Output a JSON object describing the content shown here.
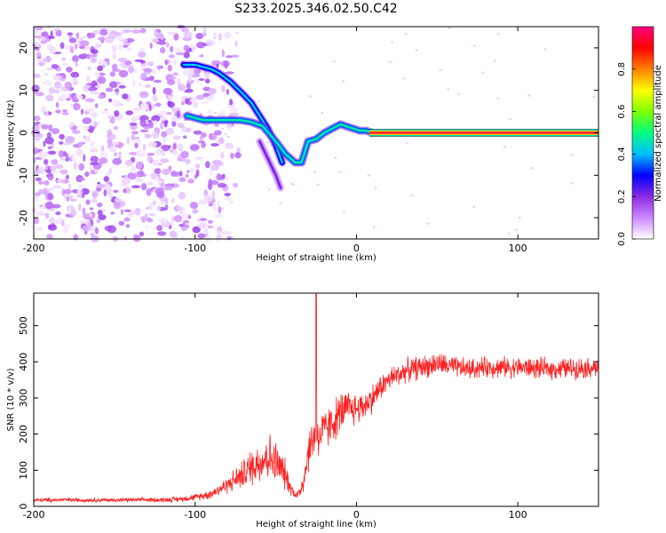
{
  "title": "S233.2025.346.02.50.C42",
  "chart_data": [
    {
      "type": "heatmap",
      "name": "spectrogram",
      "xlabel": "Height of straight line (km)",
      "ylabel": "Frequency (Hz)",
      "xlim": [
        -200,
        150
      ],
      "ylim": [
        -25,
        25
      ],
      "x_ticks": [
        -200,
        -100,
        0,
        100
      ],
      "y_ticks": [
        -20,
        -10,
        0,
        10,
        20
      ],
      "colorbar": {
        "label": "Normalized spectral amplitude",
        "range": [
          0.0,
          1.0
        ],
        "ticks": [
          0.0,
          0.2,
          0.4,
          0.6,
          0.8
        ],
        "tick_labels": [
          "0.0",
          "0.2",
          "0.4",
          "0.6",
          "0.8"
        ],
        "colors": [
          "#ffffff",
          "#cc88ff",
          "#8a2be2",
          "#0000ff",
          "#00bfff",
          "#00ff80",
          "#80ff00",
          "#ffff00",
          "#ff8000",
          "#ff0000",
          "#ff0080"
        ]
      },
      "noise_region_x": [
        -200,
        -90
      ],
      "tracks": [
        {
          "name": "upper-branch",
          "x": [
            -107,
            -100,
            -90,
            -85,
            -78,
            -70,
            -65,
            -60,
            -55,
            -50,
            -46
          ],
          "y": [
            16,
            16,
            15,
            14,
            12,
            9,
            7,
            4,
            1,
            -3,
            -7
          ],
          "amplitude": 0.3
        },
        {
          "name": "main-branch",
          "x": [
            -105,
            -95,
            -88,
            -80,
            -72,
            -65,
            -58,
            -50,
            -44,
            -38,
            -34,
            -30,
            -25,
            -20,
            -15,
            -10,
            -6,
            -2,
            2,
            6,
            10
          ],
          "y": [
            4,
            3,
            3,
            3,
            3,
            2.5,
            1.5,
            -2,
            -5,
            -7,
            -7,
            -2,
            -1.5,
            0,
            1,
            2,
            1.5,
            1,
            0.5,
            0.5,
            0
          ],
          "amplitude": 0.35
        },
        {
          "name": "lower-branch",
          "x": [
            -60,
            -55,
            -50,
            -47
          ],
          "y": [
            -2,
            -6,
            -10,
            -13
          ],
          "amplitude": 0.1
        },
        {
          "name": "carrier",
          "x": [
            8,
            150
          ],
          "y": [
            0,
            0
          ],
          "amplitude": 0.95
        }
      ]
    },
    {
      "type": "line",
      "name": "snr",
      "xlabel": "Height of straight line (km)",
      "ylabel": "SNR (10 * v/v)",
      "xlim": [
        -200,
        150
      ],
      "ylim": [
        0,
        590
      ],
      "x_ticks": [
        -200,
        -100,
        0,
        100
      ],
      "y_ticks": [
        0,
        100,
        200,
        300,
        400,
        500
      ],
      "color": "#ff2020",
      "series": [
        {
          "name": "SNR",
          "x": [
            -200,
            -180,
            -160,
            -140,
            -120,
            -110,
            -100,
            -90,
            -80,
            -70,
            -65,
            -60,
            -55,
            -50,
            -45,
            -40,
            -37,
            -35,
            -32,
            -30,
            -28,
            -26,
            -25,
            -24,
            -22,
            -20,
            -15,
            -10,
            -5,
            0,
            5,
            10,
            15,
            20,
            30,
            40,
            50,
            60,
            70,
            80,
            100,
            120,
            150
          ],
          "y": [
            17,
            18,
            17,
            18,
            18,
            20,
            25,
            35,
            60,
            90,
            110,
            125,
            140,
            120,
            95,
            45,
            30,
            40,
            90,
            150,
            170,
            200,
            210,
            190,
            200,
            210,
            230,
            260,
            270,
            270,
            280,
            300,
            330,
            350,
            375,
            385,
            395,
            385,
            380,
            385,
            385,
            380,
            385
          ],
          "noise_amplitude": [
            5,
            5,
            5,
            5,
            6,
            7,
            8,
            12,
            20,
            35,
            45,
            55,
            60,
            55,
            40,
            15,
            10,
            20,
            40,
            50,
            55,
            55,
            55,
            55,
            55,
            50,
            50,
            50,
            45,
            40,
            35,
            35,
            30,
            30,
            28,
            28,
            28,
            26,
            25,
            25,
            25,
            25,
            25
          ]
        }
      ],
      "spike": {
        "x": -25,
        "y": 590
      }
    }
  ]
}
